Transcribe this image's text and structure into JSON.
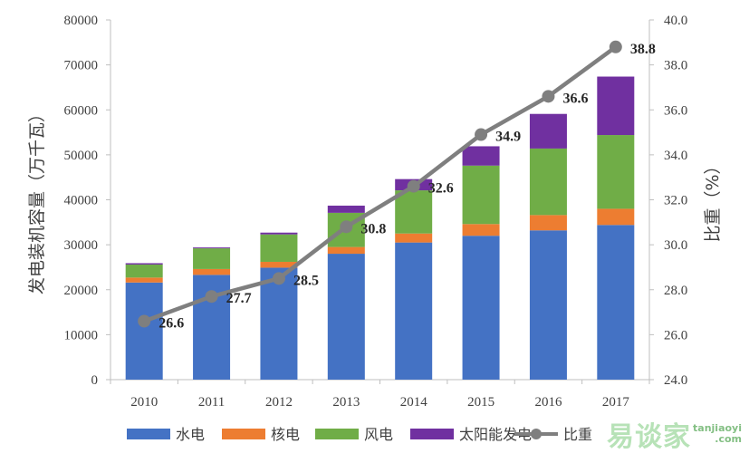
{
  "chart_data": {
    "type": "bar",
    "stacked": true,
    "categories": [
      "2010",
      "2011",
      "2012",
      "2013",
      "2014",
      "2015",
      "2016",
      "2017"
    ],
    "series": [
      {
        "name": "水电",
        "color": "#4472C4",
        "values": [
          21600,
          23300,
          24900,
          28000,
          30500,
          32000,
          33200,
          34400
        ]
      },
      {
        "name": "核电",
        "color": "#ED7D31",
        "values": [
          1100,
          1300,
          1300,
          1500,
          2000,
          2600,
          3400,
          3600
        ]
      },
      {
        "name": "风电",
        "color": "#70AD47",
        "values": [
          2900,
          4600,
          6100,
          7600,
          9600,
          13000,
          14800,
          16400
        ]
      },
      {
        "name": "太阳能发电",
        "color": "#7030A0",
        "values": [
          300,
          200,
          400,
          1600,
          2500,
          4300,
          7700,
          13000
        ]
      }
    ],
    "line": {
      "name": "比重",
      "color": "#7F7F7F",
      "values": [
        26.6,
        27.7,
        28.5,
        30.8,
        32.6,
        34.9,
        36.6,
        38.8
      ],
      "labels": [
        "26.6",
        "27.7",
        "28.5",
        "30.8",
        "32.6",
        "34.9",
        "36.6",
        "38.8"
      ]
    },
    "ylabel": "发电装机容量（万千瓦）",
    "y2label": "比重（%）",
    "ylim": [
      0,
      80000
    ],
    "y2lim": [
      24.0,
      40.0
    ],
    "yticks": [
      "0",
      "10000",
      "20000",
      "30000",
      "40000",
      "50000",
      "60000",
      "70000",
      "80000"
    ],
    "y2ticks": [
      "24.0",
      "26.0",
      "28.0",
      "30.0",
      "32.0",
      "34.0",
      "36.0",
      "38.0",
      "40.0"
    ],
    "legend_position": "bottom",
    "grid": false
  },
  "watermark": {
    "cn": "易谈家",
    "en1": "tanjiaoyi",
    "en2": ".com"
  }
}
